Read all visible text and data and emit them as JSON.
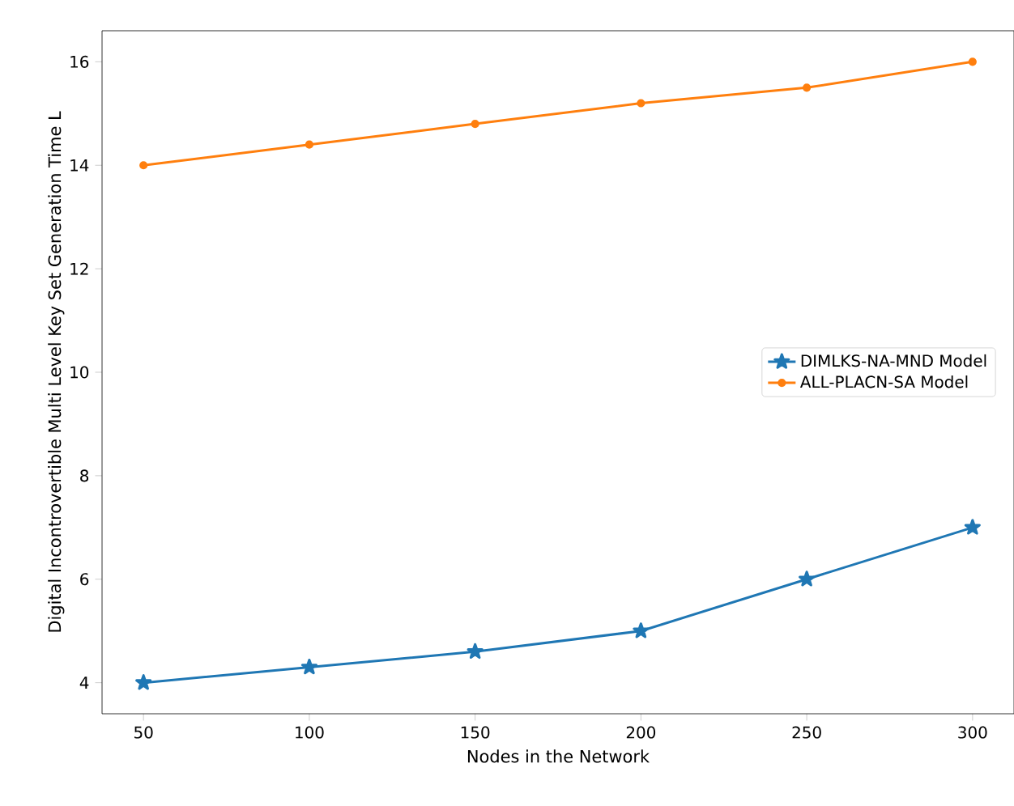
{
  "chart_data": {
    "type": "line",
    "xlabel": "Nodes in the Network",
    "ylabel": "Digital Incontrovertible Multi Level Key Set Generation Time L",
    "x": [
      50,
      100,
      150,
      200,
      250,
      300
    ],
    "series": [
      {
        "name": "DIMLKS-NA-MND Model",
        "color": "#1f77b4",
        "marker": "star",
        "values": [
          4,
          4.3,
          4.6,
          5,
          6,
          7
        ]
      },
      {
        "name": "ALL-PLACN-SA Model",
        "color": "#ff7f0e",
        "marker": "circle",
        "values": [
          14,
          14.4,
          14.8,
          15.2,
          15.5,
          16
        ]
      }
    ],
    "xlim": [
      37.5,
      312.5
    ],
    "ylim": [
      3.4,
      16.6
    ],
    "xticks": [
      50,
      100,
      150,
      200,
      250,
      300
    ],
    "yticks": [
      4,
      6,
      8,
      10,
      12,
      14,
      16
    ],
    "legend": "center right",
    "grid": false,
    "line_style": "solid"
  }
}
